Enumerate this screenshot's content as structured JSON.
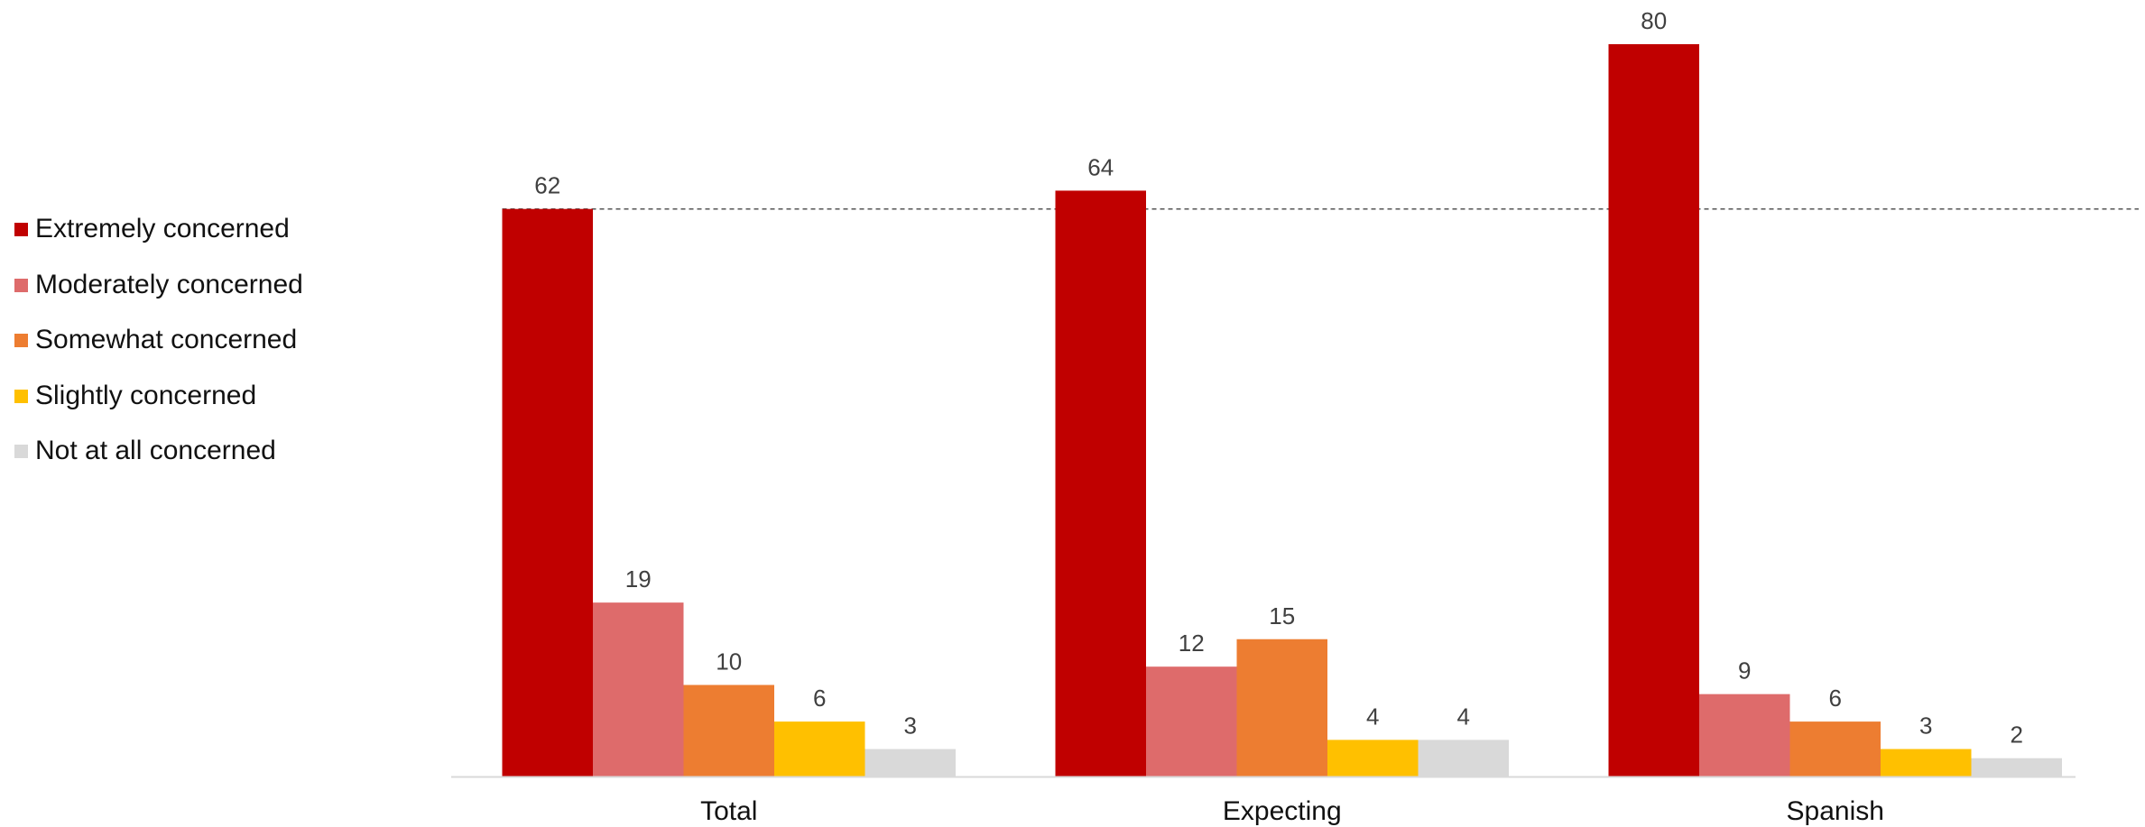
{
  "chart_data": {
    "type": "bar",
    "categories": [
      "Total",
      "Expecting",
      "Spanish"
    ],
    "series": [
      {
        "name": "Extremely concerned",
        "color": "#C00000",
        "values": [
          62,
          64,
          80
        ]
      },
      {
        "name": "Moderately concerned",
        "color": "#DE6B6B",
        "values": [
          19,
          12,
          9
        ]
      },
      {
        "name": "Somewhat concerned",
        "color": "#ED7D31",
        "values": [
          10,
          15,
          6
        ]
      },
      {
        "name": "Slightly concerned",
        "color": "#FFC000",
        "values": [
          6,
          4,
          3
        ]
      },
      {
        "name": "Not at all concerned",
        "color": "#D9D9D9",
        "values": [
          3,
          4,
          2
        ]
      }
    ],
    "reference_line": {
      "value": 62,
      "style": "dashed"
    },
    "ylim": [
      0,
      80
    ],
    "grid": false,
    "legend_position": "left",
    "title": "",
    "xlabel": "",
    "ylabel": ""
  }
}
